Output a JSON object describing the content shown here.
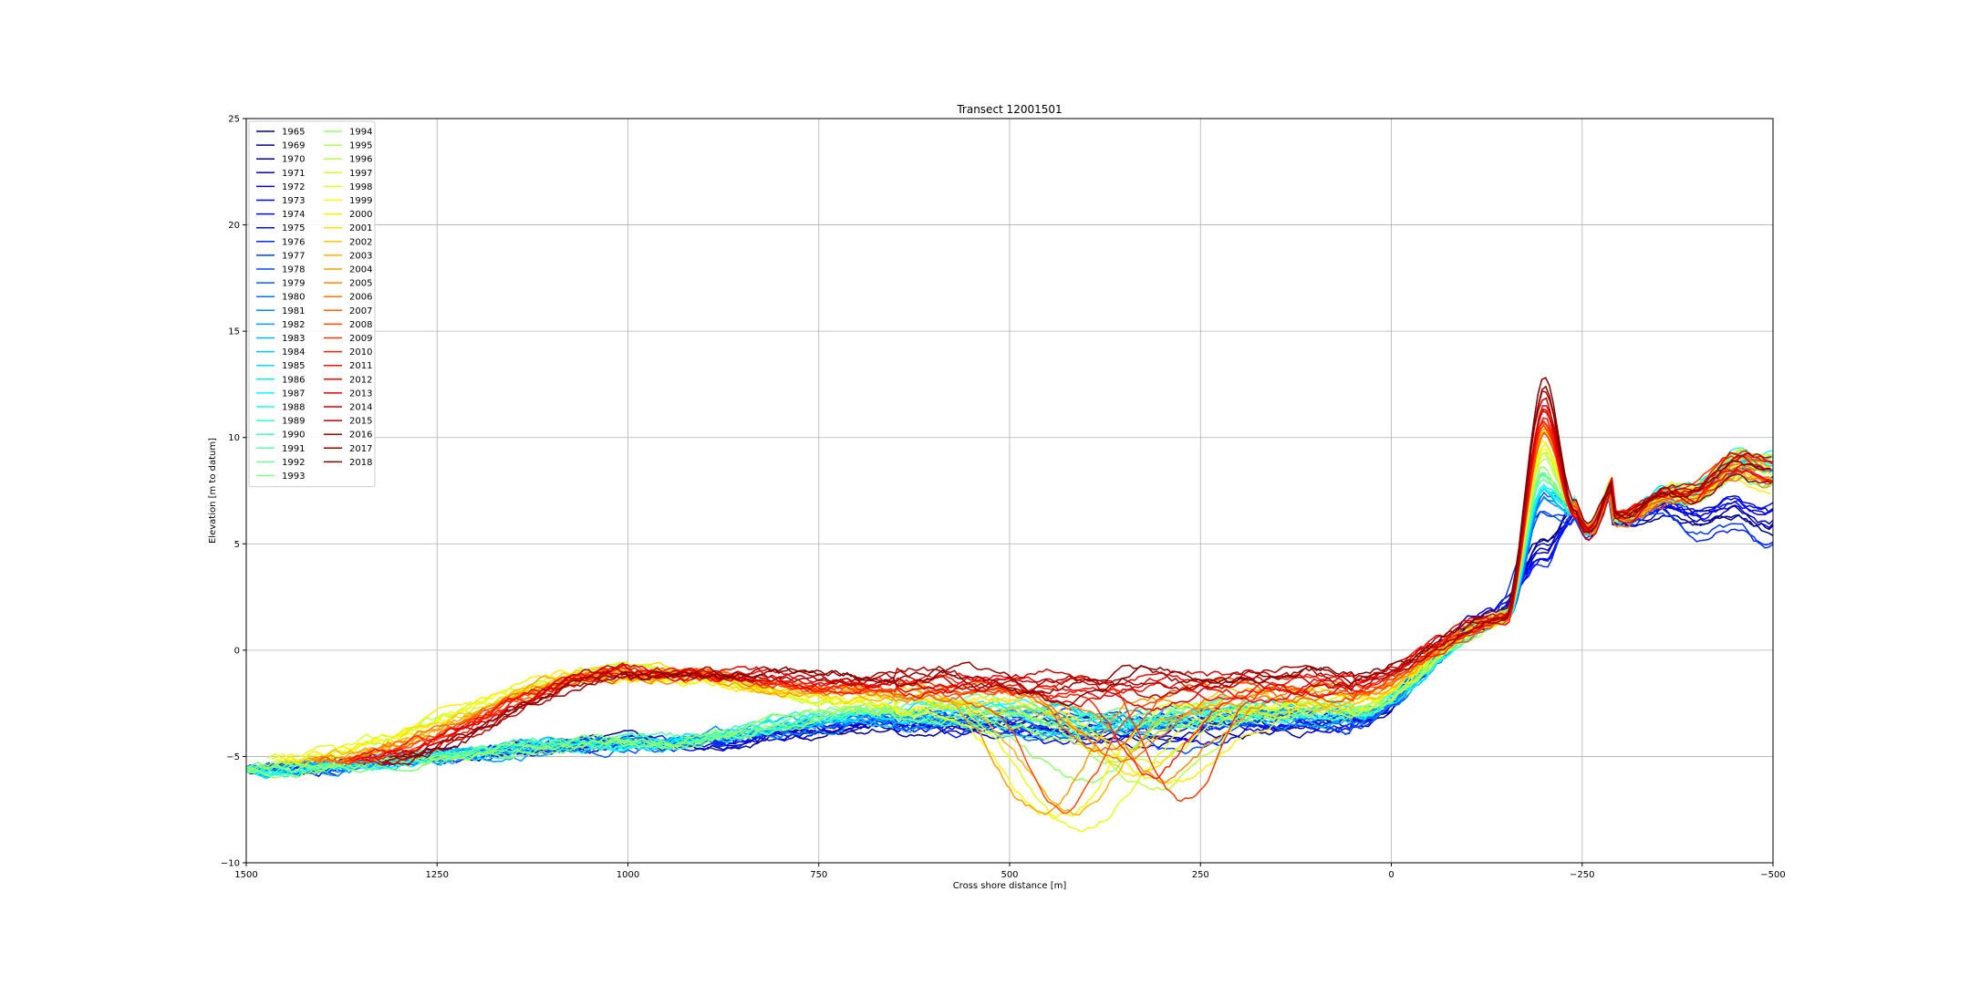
{
  "chart_data": {
    "type": "line",
    "title": "Transect 12001501",
    "xlabel": "Cross shore distance [m]",
    "ylabel": "Elevation [m to datum]",
    "xlim": [
      1500,
      -500
    ],
    "ylim": [
      -10,
      25
    ],
    "xticks": [
      "1500",
      "1250",
      "1000",
      "750",
      "500",
      "250",
      "0",
      "−250",
      "−500"
    ],
    "xtick_values": [
      1500,
      1250,
      1000,
      750,
      500,
      250,
      0,
      -250,
      -500
    ],
    "yticks": [
      "−10",
      "−5",
      "0",
      "5",
      "10",
      "15",
      "20",
      "25"
    ],
    "ytick_values": [
      -10,
      -5,
      0,
      5,
      10,
      15,
      20,
      25
    ],
    "grid": true,
    "legend_position": "upper-left",
    "legend_columns": 2,
    "colormap": "jet",
    "series": [
      {
        "name": "1965"
      },
      {
        "name": "1969"
      },
      {
        "name": "1970"
      },
      {
        "name": "1971"
      },
      {
        "name": "1972"
      },
      {
        "name": "1973"
      },
      {
        "name": "1974"
      },
      {
        "name": "1975"
      },
      {
        "name": "1976"
      },
      {
        "name": "1977"
      },
      {
        "name": "1978"
      },
      {
        "name": "1979"
      },
      {
        "name": "1980"
      },
      {
        "name": "1981"
      },
      {
        "name": "1982"
      },
      {
        "name": "1983"
      },
      {
        "name": "1984"
      },
      {
        "name": "1985"
      },
      {
        "name": "1986"
      },
      {
        "name": "1987"
      },
      {
        "name": "1988"
      },
      {
        "name": "1989"
      },
      {
        "name": "1990"
      },
      {
        "name": "1991"
      },
      {
        "name": "1992"
      },
      {
        "name": "1993"
      },
      {
        "name": "1994"
      },
      {
        "name": "1995"
      },
      {
        "name": "1996"
      },
      {
        "name": "1997"
      },
      {
        "name": "1998"
      },
      {
        "name": "1999"
      },
      {
        "name": "2000"
      },
      {
        "name": "2001"
      },
      {
        "name": "2002"
      },
      {
        "name": "2003"
      },
      {
        "name": "2004"
      },
      {
        "name": "2005"
      },
      {
        "name": "2006"
      },
      {
        "name": "2007"
      },
      {
        "name": "2008"
      },
      {
        "name": "2009"
      },
      {
        "name": "2010"
      },
      {
        "name": "2011"
      },
      {
        "name": "2012"
      },
      {
        "name": "2013"
      },
      {
        "name": "2014"
      },
      {
        "name": "2015"
      },
      {
        "name": "2016"
      },
      {
        "name": "2017"
      },
      {
        "name": "2018"
      }
    ]
  }
}
